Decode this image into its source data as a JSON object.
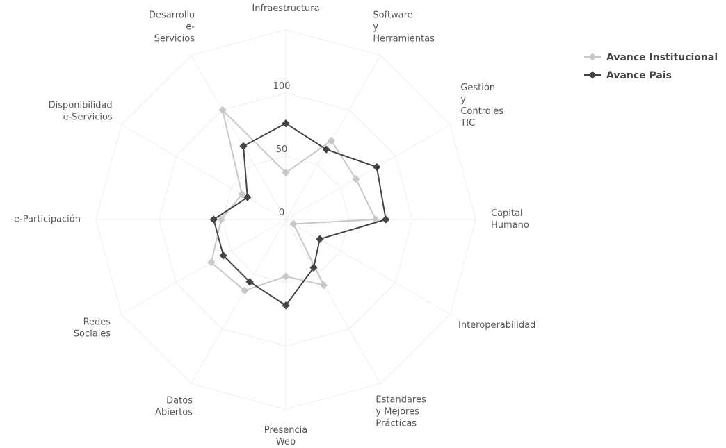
{
  "chart_data": {
    "type": "radar",
    "categories": [
      "Infraestructura",
      "Software\ny\nHerramientas",
      "Gestión\ny\nControles\nTIC",
      "Capital\nHumano",
      "Interoperabilidad",
      "Estandares\ny Mejores\nPrácticas",
      "Presencia\nWeb",
      "Datos\nAbiertos",
      "Redes\nSociales",
      "e-Participación",
      "Disponibilidad\ne-Servicios",
      "Desarrollo\ne-\nServicios"
    ],
    "series": [
      {
        "name": "Avance Institucional",
        "color": "#c8c8c8",
        "values": [
          37,
          72,
          64,
          71,
          7,
          60,
          45,
          65,
          68,
          51,
          40,
          100
        ]
      },
      {
        "name": "Avance Pais",
        "color": "#444444",
        "values": [
          76,
          64,
          83,
          79,
          31,
          44,
          68,
          57,
          57,
          57,
          35,
          67
        ]
      }
    ],
    "ylim": [
      0,
      150
    ],
    "yticks": [
      0,
      50,
      100
    ],
    "grid": true,
    "legend": "top-right"
  }
}
